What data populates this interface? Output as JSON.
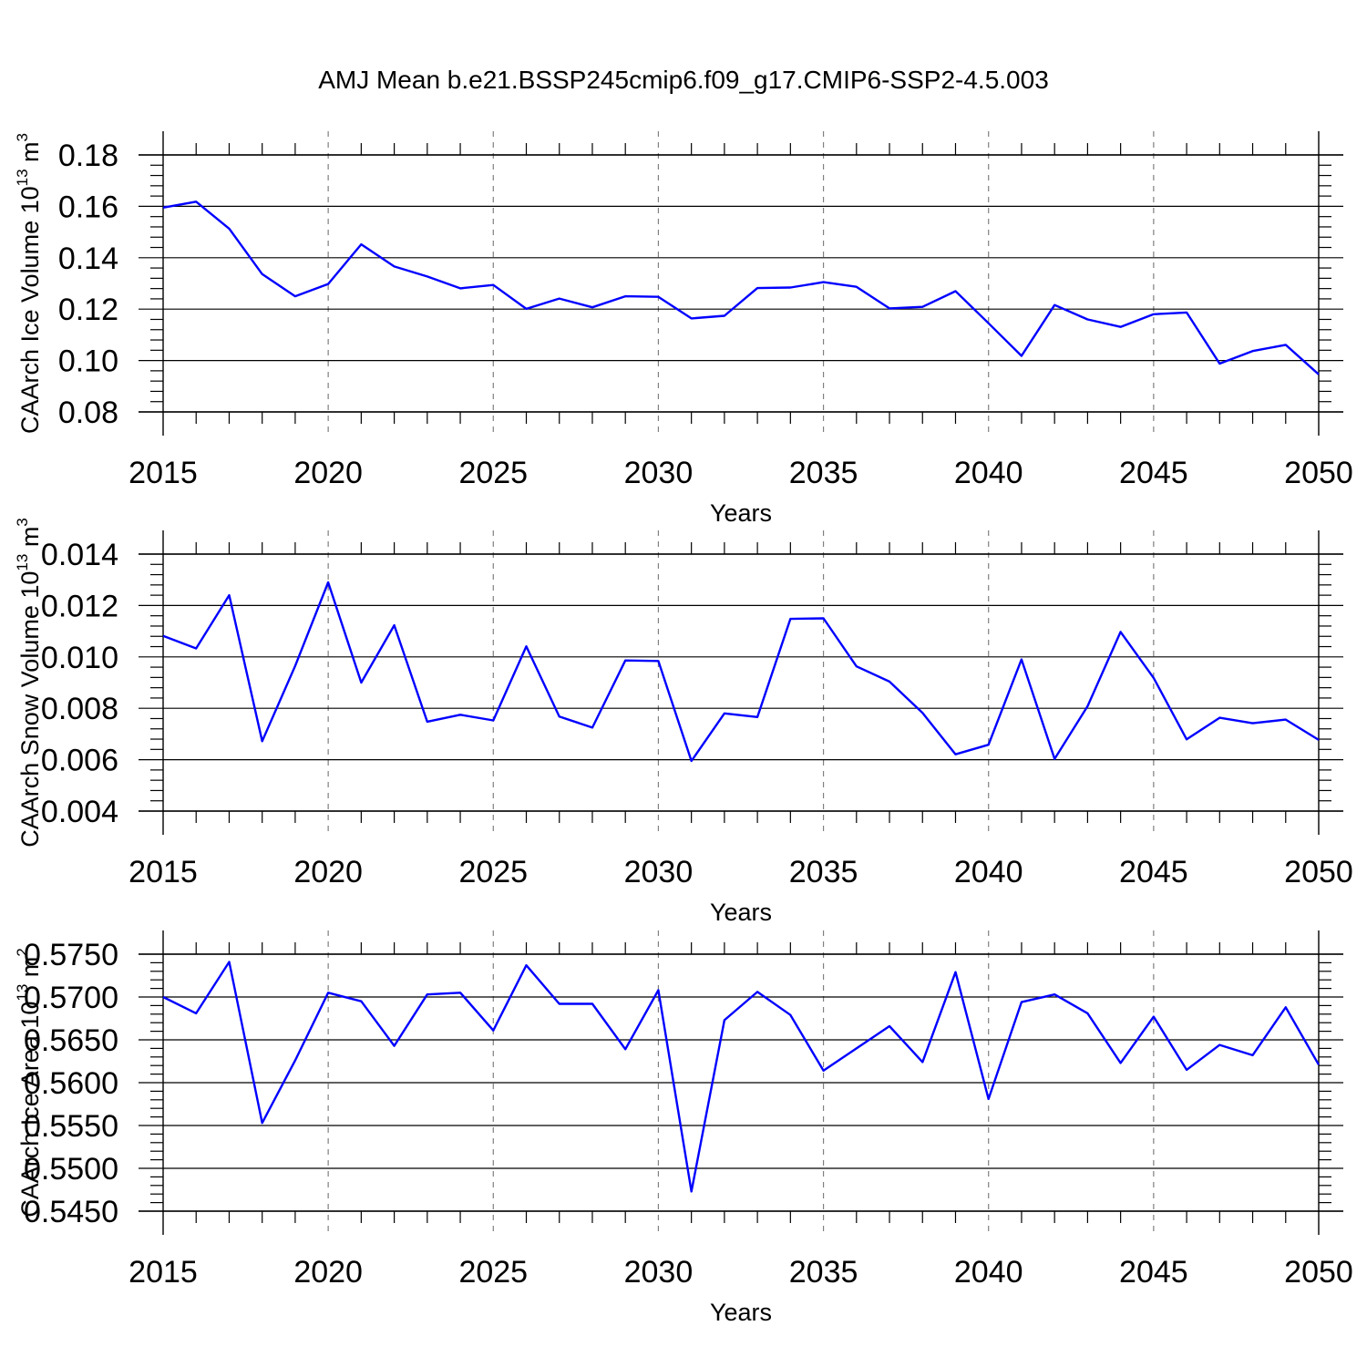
{
  "title": "AMJ Mean b.e21.BSSP245cmip6.f09_g17.CMIP6-SSP2-4.5.003",
  "colors": {
    "line": "#0000ff",
    "axis": "#000000",
    "grid": "#808080"
  },
  "chart_data": [
    {
      "type": "line",
      "xlabel": "Years",
      "ylabel": "CAArch Ice Volume 10",
      "ylabel_exp": "13",
      "ylabel_unit": "m",
      "ylabel_unit_exp": "3",
      "xlim": [
        2015,
        2050
      ],
      "ylim": [
        0.08,
        0.18
      ],
      "xticks": [
        2015,
        2020,
        2025,
        2030,
        2035,
        2040,
        2045,
        2050
      ],
      "xtick_labels": [
        "2015",
        "2020",
        "2025",
        "2030",
        "2035",
        "2040",
        "2045",
        "2050"
      ],
      "yticks": [
        0.08,
        0.1,
        0.12,
        0.14,
        0.16,
        0.18
      ],
      "ytick_labels": [
        "0.08",
        "0.10",
        "0.12",
        "0.14",
        "0.16",
        "0.18"
      ],
      "grid": "vertical dashed at major x ticks",
      "x": [
        2015,
        2016,
        2017,
        2018,
        2019,
        2020,
        2021,
        2022,
        2023,
        2024,
        2025,
        2026,
        2027,
        2028,
        2029,
        2030,
        2031,
        2032,
        2033,
        2034,
        2035,
        2036,
        2037,
        2038,
        2039,
        2040,
        2041,
        2042,
        2043,
        2044,
        2045,
        2046,
        2047,
        2048,
        2049,
        2050
      ],
      "values": [
        0.1595,
        0.1618,
        0.1513,
        0.1336,
        0.125,
        0.1298,
        0.1452,
        0.1366,
        0.1327,
        0.1281,
        0.1294,
        0.1201,
        0.1241,
        0.1207,
        0.125,
        0.1248,
        0.1164,
        0.1174,
        0.1282,
        0.1284,
        0.1305,
        0.1287,
        0.1203,
        0.1209,
        0.127,
        0.1145,
        0.1018,
        0.1216,
        0.116,
        0.1131,
        0.118,
        0.1187,
        0.0988,
        0.1037,
        0.1061,
        0.0946
      ]
    },
    {
      "type": "line",
      "xlabel": "Years",
      "ylabel": "CAArch Snow Volume 10",
      "ylabel_exp": "13",
      "ylabel_unit": "m",
      "ylabel_unit_exp": "3",
      "xlim": [
        2015,
        2050
      ],
      "ylim": [
        0.004,
        0.014
      ],
      "xticks": [
        2015,
        2020,
        2025,
        2030,
        2035,
        2040,
        2045,
        2050
      ],
      "xtick_labels": [
        "2015",
        "2020",
        "2025",
        "2030",
        "2035",
        "2040",
        "2045",
        "2050"
      ],
      "yticks": [
        0.004,
        0.006,
        0.008,
        0.01,
        0.012,
        0.014
      ],
      "ytick_labels": [
        "0.004",
        "0.006",
        "0.008",
        "0.010",
        "0.012",
        "0.014"
      ],
      "grid": "vertical dashed at major x ticks",
      "x": [
        2015,
        2016,
        2017,
        2018,
        2019,
        2020,
        2021,
        2022,
        2023,
        2024,
        2025,
        2026,
        2027,
        2028,
        2029,
        2030,
        2031,
        2032,
        2033,
        2034,
        2035,
        2036,
        2037,
        2038,
        2039,
        2040,
        2041,
        2042,
        2043,
        2044,
        2045,
        2046,
        2047,
        2048,
        2049,
        2050
      ],
      "values": [
        0.01082,
        0.01033,
        0.0124,
        0.00672,
        0.00965,
        0.0129,
        0.009,
        0.01123,
        0.00748,
        0.00775,
        0.00753,
        0.01041,
        0.00768,
        0.00725,
        0.00986,
        0.00984,
        0.00595,
        0.0078,
        0.00766,
        0.01148,
        0.0115,
        0.00963,
        0.00904,
        0.00782,
        0.00621,
        0.00658,
        0.0099,
        0.00603,
        0.00808,
        0.01097,
        0.00918,
        0.00679,
        0.00763,
        0.00742,
        0.00756,
        0.00677
      ]
    },
    {
      "type": "line",
      "xlabel": "Years",
      "ylabel": "CAArch Ice Area 10",
      "ylabel_exp": "13",
      "ylabel_unit": "m",
      "ylabel_unit_exp": "2",
      "xlim": [
        2015,
        2050
      ],
      "ylim": [
        0.545,
        0.575
      ],
      "xticks": [
        2015,
        2020,
        2025,
        2030,
        2035,
        2040,
        2045,
        2050
      ],
      "xtick_labels": [
        "2015",
        "2020",
        "2025",
        "2030",
        "2035",
        "2040",
        "2045",
        "2050"
      ],
      "yticks": [
        0.545,
        0.55,
        0.555,
        0.56,
        0.565,
        0.57,
        0.575
      ],
      "ytick_labels": [
        "0.5450",
        "0.5500",
        "0.5550",
        "0.5600",
        "0.5650",
        "0.5700",
        "0.5750"
      ],
      "grid": "vertical dashed at major x ticks",
      "x": [
        2015,
        2016,
        2017,
        2018,
        2019,
        2020,
        2021,
        2022,
        2023,
        2024,
        2025,
        2026,
        2027,
        2028,
        2029,
        2030,
        2031,
        2032,
        2033,
        2034,
        2035,
        2036,
        2037,
        2038,
        2039,
        2040,
        2041,
        2042,
        2043,
        2044,
        2045,
        2046,
        2047,
        2048,
        2049,
        2050
      ],
      "values": [
        0.57,
        0.5681,
        0.5741,
        0.5553,
        0.5626,
        0.5705,
        0.5695,
        0.5643,
        0.5703,
        0.5705,
        0.5661,
        0.5737,
        0.5692,
        0.5692,
        0.5639,
        0.5708,
        0.5473,
        0.5673,
        0.5706,
        0.5679,
        0.5614,
        0.564,
        0.5666,
        0.5624,
        0.5729,
        0.5581,
        0.5694,
        0.5703,
        0.5681,
        0.5623,
        0.5677,
        0.5615,
        0.5644,
        0.5632,
        0.5688,
        0.5621
      ]
    }
  ]
}
